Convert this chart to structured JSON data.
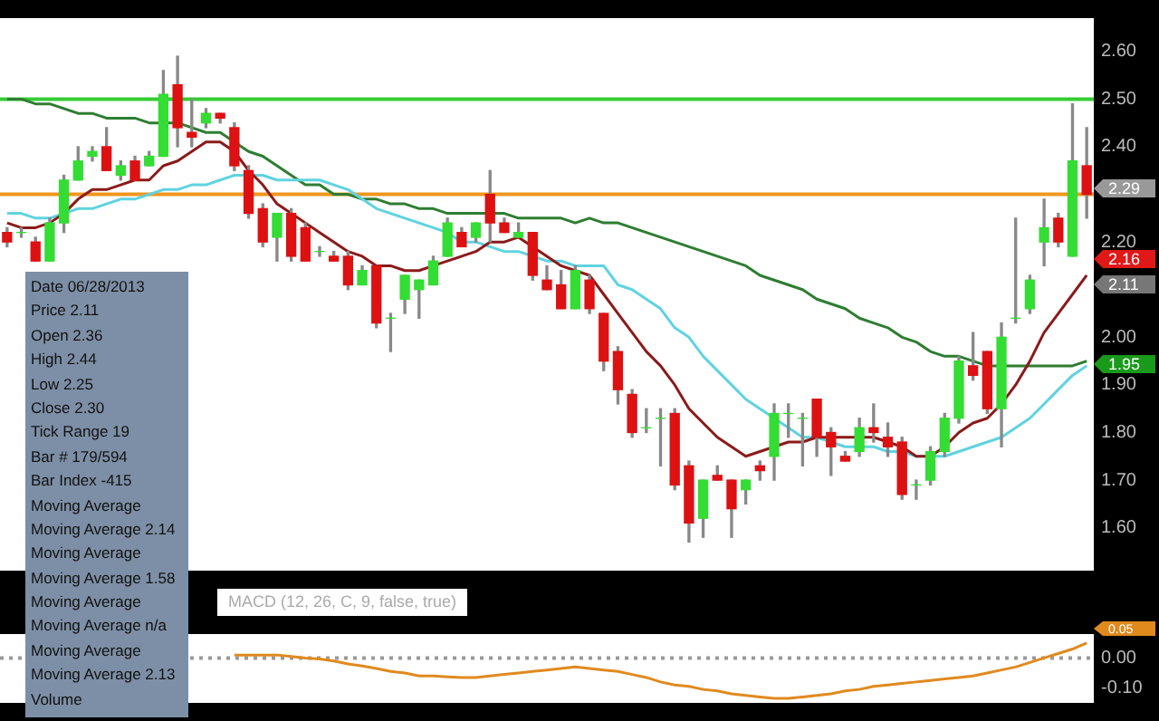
{
  "chart_data": [
    {
      "type": "candlestick",
      "categories": [
        null,
        null,
        null,
        null,
        null,
        null,
        null,
        null,
        null,
        null,
        null,
        null,
        null,
        null,
        null,
        null,
        null,
        null,
        null,
        null,
        null,
        null,
        null,
        null,
        null,
        null,
        null,
        null,
        null,
        null,
        null,
        null,
        null,
        null,
        null,
        null,
        null,
        null,
        null,
        null,
        null,
        null,
        null,
        null,
        null,
        null,
        null,
        null,
        null,
        null,
        null,
        null,
        null,
        null,
        null,
        null,
        null,
        null,
        null,
        null,
        null,
        null,
        null,
        null,
        null,
        null,
        null,
        null,
        null,
        null,
        null,
        null,
        null,
        null,
        null,
        null,
        null
      ],
      "ohlc": [
        [
          2.22,
          2.23,
          2.19,
          2.2
        ],
        [
          2.22,
          2.23,
          2.21,
          2.22
        ],
        [
          2.2,
          2.21,
          2.16,
          2.16
        ],
        [
          2.16,
          2.25,
          2.16,
          2.24
        ],
        [
          2.24,
          2.34,
          2.22,
          2.33
        ],
        [
          2.33,
          2.4,
          2.33,
          2.37
        ],
        [
          2.38,
          2.4,
          2.37,
          2.39
        ],
        [
          2.4,
          2.44,
          2.35,
          2.35
        ],
        [
          2.34,
          2.37,
          2.33,
          2.36
        ],
        [
          2.37,
          2.38,
          2.33,
          2.33
        ],
        [
          2.36,
          2.39,
          2.36,
          2.38
        ],
        [
          2.38,
          2.56,
          2.38,
          2.51
        ],
        [
          2.53,
          2.59,
          2.4,
          2.44
        ],
        [
          2.43,
          2.5,
          2.4,
          2.42
        ],
        [
          2.45,
          2.48,
          2.44,
          2.47
        ],
        [
          2.47,
          2.47,
          2.45,
          2.46
        ],
        [
          2.44,
          2.45,
          2.35,
          2.36
        ],
        [
          2.35,
          2.36,
          2.25,
          2.26
        ],
        [
          2.27,
          2.28,
          2.19,
          2.2
        ],
        [
          2.21,
          2.26,
          2.16,
          2.26
        ],
        [
          2.26,
          2.27,
          2.16,
          2.17
        ],
        [
          2.23,
          2.24,
          2.16,
          2.16
        ],
        [
          2.18,
          2.19,
          2.17,
          2.18
        ],
        [
          2.17,
          2.18,
          2.16,
          2.16
        ],
        [
          2.17,
          2.18,
          2.1,
          2.11
        ],
        [
          2.11,
          2.15,
          2.11,
          2.14
        ],
        [
          2.15,
          2.15,
          2.02,
          2.03
        ],
        [
          2.04,
          2.05,
          1.97,
          2.04
        ],
        [
          2.08,
          2.13,
          2.05,
          2.13
        ],
        [
          2.1,
          2.12,
          2.04,
          2.12
        ],
        [
          2.11,
          2.17,
          2.11,
          2.16
        ],
        [
          2.17,
          2.25,
          2.17,
          2.24
        ],
        [
          2.22,
          2.23,
          2.19,
          2.19
        ],
        [
          2.21,
          2.24,
          2.2,
          2.24
        ],
        [
          2.3,
          2.35,
          2.2,
          2.24
        ],
        [
          2.24,
          2.25,
          2.22,
          2.22
        ],
        [
          2.21,
          2.24,
          2.21,
          2.22
        ],
        [
          2.22,
          2.22,
          2.12,
          2.13
        ],
        [
          2.12,
          2.15,
          2.1,
          2.1
        ],
        [
          2.11,
          2.14,
          2.06,
          2.06
        ],
        [
          2.06,
          2.15,
          2.06,
          2.14
        ],
        [
          2.12,
          2.13,
          2.05,
          2.06
        ],
        [
          2.05,
          2.05,
          1.93,
          1.95
        ],
        [
          1.97,
          1.98,
          1.86,
          1.89
        ],
        [
          1.88,
          1.89,
          1.79,
          1.8
        ],
        [
          1.81,
          1.85,
          1.8,
          1.81
        ],
        [
          1.83,
          1.85,
          1.73,
          1.83
        ],
        [
          1.84,
          1.85,
          1.68,
          1.69
        ],
        [
          1.73,
          1.74,
          1.57,
          1.61
        ],
        [
          1.62,
          1.7,
          1.58,
          1.7
        ],
        [
          1.71,
          1.73,
          1.7,
          1.7
        ],
        [
          1.7,
          1.7,
          1.58,
          1.64
        ],
        [
          1.68,
          1.7,
          1.65,
          1.7
        ],
        [
          1.73,
          1.74,
          1.7,
          1.72
        ],
        [
          1.75,
          1.86,
          1.7,
          1.84
        ],
        [
          1.84,
          1.86,
          1.79,
          1.84
        ],
        [
          1.83,
          1.84,
          1.73,
          1.83
        ],
        [
          1.87,
          1.87,
          1.75,
          1.79
        ],
        [
          1.8,
          1.81,
          1.71,
          1.77
        ],
        [
          1.75,
          1.76,
          1.74,
          1.74
        ],
        [
          1.76,
          1.83,
          1.75,
          1.81
        ],
        [
          1.81,
          1.86,
          1.78,
          1.8
        ],
        [
          1.79,
          1.82,
          1.75,
          1.77
        ],
        [
          1.78,
          1.79,
          1.66,
          1.67
        ],
        [
          1.69,
          1.7,
          1.66,
          1.69
        ],
        [
          1.7,
          1.77,
          1.69,
          1.76
        ],
        [
          1.76,
          1.84,
          1.75,
          1.83
        ],
        [
          1.83,
          1.96,
          1.82,
          1.95
        ],
        [
          1.94,
          2.01,
          1.91,
          1.92
        ],
        [
          1.97,
          1.97,
          1.84,
          1.85
        ],
        [
          1.85,
          2.03,
          1.77,
          2.0
        ],
        [
          2.04,
          2.25,
          2.03,
          2.04
        ],
        [
          2.06,
          2.13,
          2.05,
          2.12
        ],
        [
          2.2,
          2.29,
          2.15,
          2.23
        ],
        [
          2.25,
          2.26,
          2.19,
          2.2
        ],
        [
          2.17,
          2.49,
          2.17,
          2.37
        ],
        [
          2.36,
          2.44,
          2.25,
          2.3
        ]
      ],
      "series": [
        {
          "type": "line",
          "color": "#8b1a1a",
          "values": [
            2.24,
            2.23,
            2.23,
            2.24,
            2.26,
            2.29,
            2.31,
            2.31,
            2.32,
            2.33,
            2.33,
            2.36,
            2.37,
            2.39,
            2.41,
            2.41,
            2.39,
            2.35,
            2.32,
            2.28,
            2.26,
            2.24,
            2.22,
            2.2,
            2.18,
            2.17,
            2.15,
            2.15,
            2.14,
            2.14,
            2.15,
            2.16,
            2.17,
            2.18,
            2.2,
            2.2,
            2.21,
            2.19,
            2.17,
            2.15,
            2.14,
            2.13,
            2.09,
            2.05,
            2.01,
            1.97,
            1.94,
            1.9,
            1.85,
            1.82,
            1.79,
            1.77,
            1.75,
            1.76,
            1.77,
            1.78,
            1.78,
            1.79,
            1.79,
            1.79,
            1.79,
            1.79,
            1.78,
            1.77,
            1.75,
            1.75,
            1.77,
            1.8,
            1.82,
            1.83,
            1.86,
            1.9,
            1.95,
            2.01,
            2.05,
            2.09,
            2.13
          ]
        },
        {
          "type": "line",
          "color": "#5fd3e0",
          "values": [
            2.26,
            2.26,
            2.25,
            2.25,
            2.26,
            2.27,
            2.27,
            2.28,
            2.29,
            2.29,
            2.3,
            2.31,
            2.31,
            2.32,
            2.32,
            2.33,
            2.34,
            2.34,
            2.34,
            2.33,
            2.33,
            2.33,
            2.33,
            2.32,
            2.31,
            2.29,
            2.27,
            2.26,
            2.25,
            2.24,
            2.23,
            2.22,
            2.2,
            2.2,
            2.19,
            2.18,
            2.18,
            2.17,
            2.16,
            2.16,
            2.15,
            2.15,
            2.15,
            2.11,
            2.1,
            2.08,
            2.06,
            2.02,
            2.0,
            1.96,
            1.93,
            1.9,
            1.87,
            1.85,
            1.83,
            1.81,
            1.79,
            1.79,
            1.78,
            1.77,
            1.77,
            1.77,
            1.76,
            1.76,
            1.75,
            1.75,
            1.75,
            1.76,
            1.77,
            1.78,
            1.79,
            1.81,
            1.83,
            1.86,
            1.89,
            1.92,
            1.94
          ]
        },
        {
          "type": "line",
          "color": "#2e7d32",
          "values": [
            2.5,
            2.5,
            2.49,
            2.49,
            2.48,
            2.47,
            2.47,
            2.46,
            2.46,
            2.46,
            2.45,
            2.45,
            2.45,
            2.44,
            2.43,
            2.43,
            2.41,
            2.39,
            2.38,
            2.36,
            2.34,
            2.32,
            2.32,
            2.3,
            2.3,
            2.29,
            2.29,
            2.28,
            2.28,
            2.27,
            2.27,
            2.26,
            2.26,
            2.26,
            2.26,
            2.26,
            2.25,
            2.25,
            2.25,
            2.25,
            2.24,
            2.25,
            2.24,
            2.24,
            2.23,
            2.22,
            2.21,
            2.2,
            2.19,
            2.18,
            2.17,
            2.16,
            2.15,
            2.13,
            2.12,
            2.11,
            2.1,
            2.08,
            2.07,
            2.06,
            2.04,
            2.03,
            2.02,
            2.0,
            1.99,
            1.97,
            1.96,
            1.96,
            1.95,
            1.94,
            1.94,
            1.94,
            1.94,
            1.94,
            1.94,
            1.94,
            1.95
          ]
        }
      ],
      "ylim": [
        1.51,
        2.67
      ],
      "yticks": [
        {
          "value": 1.6,
          "label": "1.60"
        },
        {
          "value": 1.7,
          "label": "1.70"
        },
        {
          "value": 1.8,
          "label": "1.80"
        },
        {
          "value": 1.9,
          "label": "1.90"
        },
        {
          "value": 2.0,
          "label": "2.00"
        },
        {
          "value": 2.2,
          "label": "2.20"
        },
        {
          "value": 2.4,
          "label": "2.40"
        },
        {
          "value": 2.5,
          "label": "2.50"
        },
        {
          "value": 2.6,
          "label": "2.60"
        }
      ],
      "tick_labels": "y",
      "ref_lines": [
        {
          "axis": "y",
          "value": 2.5,
          "color": "#33cc33"
        },
        {
          "axis": "y",
          "value": 2.3,
          "color": "#f0961e"
        }
      ],
      "annotations": [
        "2.29",
        "2.16",
        "2.11",
        "1.95",
        "Date 06/28/2013",
        "Price 2.11",
        "Open 2.36",
        "High 2.44",
        "Low 2.25",
        "Close 2.30",
        "Tick Range 19",
        "Bar # 179/594",
        "Bar Index -415",
        "Moving Average",
        "Moving Average 2.14",
        "Moving Average",
        "Moving Average 1.58",
        "Moving Average",
        "Moving Average n/a",
        "Moving Average",
        "Moving Average 2.13",
        "Volume"
      ]
    },
    {
      "type": "line",
      "title": "MACD (12, 26, C, 9, false, true)",
      "categories": [
        null,
        null,
        null,
        null,
        null,
        null,
        null,
        null,
        null,
        null,
        null,
        null,
        null,
        null,
        null,
        null,
        null,
        null,
        null,
        null,
        null,
        null,
        null,
        null,
        null,
        null,
        null,
        null,
        null,
        null,
        null,
        null,
        null,
        null,
        null,
        null,
        null,
        null,
        null,
        null,
        null,
        null,
        null,
        null,
        null,
        null,
        null,
        null,
        null,
        null,
        null,
        null,
        null,
        null,
        null,
        null,
        null,
        null,
        null,
        null,
        null,
        null,
        null,
        null,
        null,
        null,
        null,
        null,
        null,
        null,
        null,
        null,
        null,
        null,
        null,
        null,
        null
      ],
      "series": [
        {
          "color": "#e08a1e",
          "values": [
            null,
            null,
            null,
            null,
            null,
            null,
            null,
            null,
            null,
            null,
            null,
            null,
            null,
            null,
            null,
            null,
            0.01,
            0.01,
            0.01,
            0.01,
            0.005,
            0.0,
            -0.003,
            -0.01,
            -0.02,
            -0.027,
            -0.035,
            -0.045,
            -0.05,
            -0.06,
            -0.06,
            -0.063,
            -0.065,
            -0.065,
            -0.06,
            -0.055,
            -0.05,
            -0.045,
            -0.04,
            -0.035,
            -0.03,
            -0.035,
            -0.04,
            -0.045,
            -0.055,
            -0.065,
            -0.08,
            -0.09,
            -0.095,
            -0.105,
            -0.11,
            -0.12,
            -0.125,
            -0.13,
            -0.135,
            -0.135,
            -0.13,
            -0.125,
            -0.12,
            -0.11,
            -0.105,
            -0.095,
            -0.09,
            -0.085,
            -0.08,
            -0.075,
            -0.07,
            -0.065,
            -0.06,
            -0.05,
            -0.04,
            -0.03,
            -0.015,
            0.0,
            0.015,
            0.03,
            0.05
          ]
        }
      ],
      "ylim": [
        -0.15,
        0.08
      ],
      "yticks": [
        {
          "value": 0,
          "label": "0.00"
        },
        {
          "value": -0.1,
          "label": "-0.10"
        }
      ],
      "tick_labels": "y",
      "ref_lines": [
        {
          "axis": "y",
          "value": 0,
          "color": "#999999",
          "line_style": "dotted"
        }
      ],
      "annotations": [
        "0.05"
      ]
    }
  ]
}
